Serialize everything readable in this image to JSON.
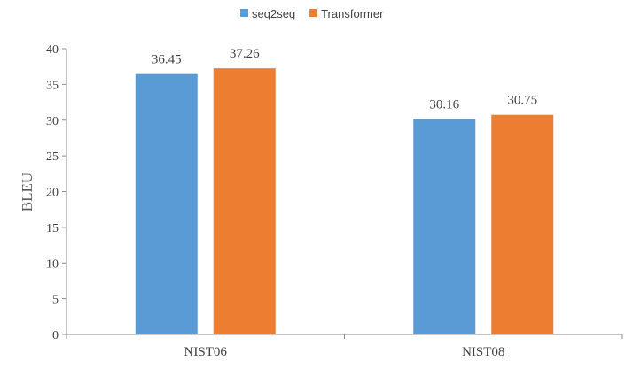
{
  "chart_data": {
    "type": "bar",
    "categories": [
      "NIST06",
      "NIST08"
    ],
    "series": [
      {
        "name": "seq2seq",
        "values": [
          36.45,
          30.16
        ],
        "color": "#5b9bd5"
      },
      {
        "name": "Transformer",
        "values": [
          37.26,
          30.75
        ],
        "color": "#ed7d31"
      }
    ],
    "value_labels": [
      [
        "36.45",
        "30.16"
      ],
      [
        "37.26",
        "30.75"
      ]
    ],
    "ylabel": "BLEU",
    "xlabel": "",
    "ylim": [
      0,
      40
    ],
    "yticks": [
      0,
      5,
      10,
      15,
      20,
      25,
      30,
      35,
      40
    ],
    "grid": false,
    "legend_position": "top-center"
  }
}
